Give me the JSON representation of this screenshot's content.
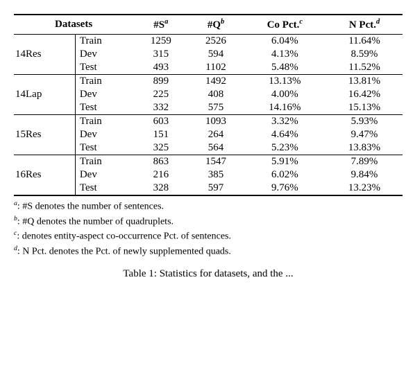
{
  "headers": {
    "datasets": "Datasets",
    "s": "#S",
    "s_sup": "a",
    "q": "#Q",
    "q_sup": "b",
    "co": "Co Pct.",
    "co_sup": "c",
    "n": "N Pct.",
    "n_sup": "d"
  },
  "groups": [
    {
      "name": "14Res",
      "rows": [
        {
          "split": "Train",
          "s": "1259",
          "q": "2526",
          "co": "6.04%",
          "n": "11.64%"
        },
        {
          "split": "Dev",
          "s": "315",
          "q": "594",
          "co": "4.13%",
          "n": "8.59%"
        },
        {
          "split": "Test",
          "s": "493",
          "q": "1102",
          "co": "5.48%",
          "n": "11.52%"
        }
      ]
    },
    {
      "name": "14Lap",
      "rows": [
        {
          "split": "Train",
          "s": "899",
          "q": "1492",
          "co": "13.13%",
          "n": "13.81%"
        },
        {
          "split": "Dev",
          "s": "225",
          "q": "408",
          "co": "4.00%",
          "n": "16.42%"
        },
        {
          "split": "Test",
          "s": "332",
          "q": "575",
          "co": "14.16%",
          "n": "15.13%"
        }
      ]
    },
    {
      "name": "15Res",
      "rows": [
        {
          "split": "Train",
          "s": "603",
          "q": "1093",
          "co": "3.32%",
          "n": "5.93%"
        },
        {
          "split": "Dev",
          "s": "151",
          "q": "264",
          "co": "4.64%",
          "n": "9.47%"
        },
        {
          "split": "Test",
          "s": "325",
          "q": "564",
          "co": "5.23%",
          "n": "13.83%"
        }
      ]
    },
    {
      "name": "16Res",
      "rows": [
        {
          "split": "Train",
          "s": "863",
          "q": "1547",
          "co": "5.91%",
          "n": "7.89%"
        },
        {
          "split": "Dev",
          "s": "216",
          "q": "385",
          "co": "6.02%",
          "n": "9.84%"
        },
        {
          "split": "Test",
          "s": "328",
          "q": "597",
          "co": "9.76%",
          "n": "13.23%"
        }
      ]
    }
  ],
  "footnotes": {
    "a": ": #S denotes the number of sentences.",
    "b": ": #Q denotes the number of quadruplets.",
    "c": ": denotes entity-aspect co-occurrence Pct. of sentences.",
    "d": ": N Pct. denotes the Pct. of newly supplemented quads."
  },
  "caption": "Table 1: Statistics for datasets, and the ..."
}
